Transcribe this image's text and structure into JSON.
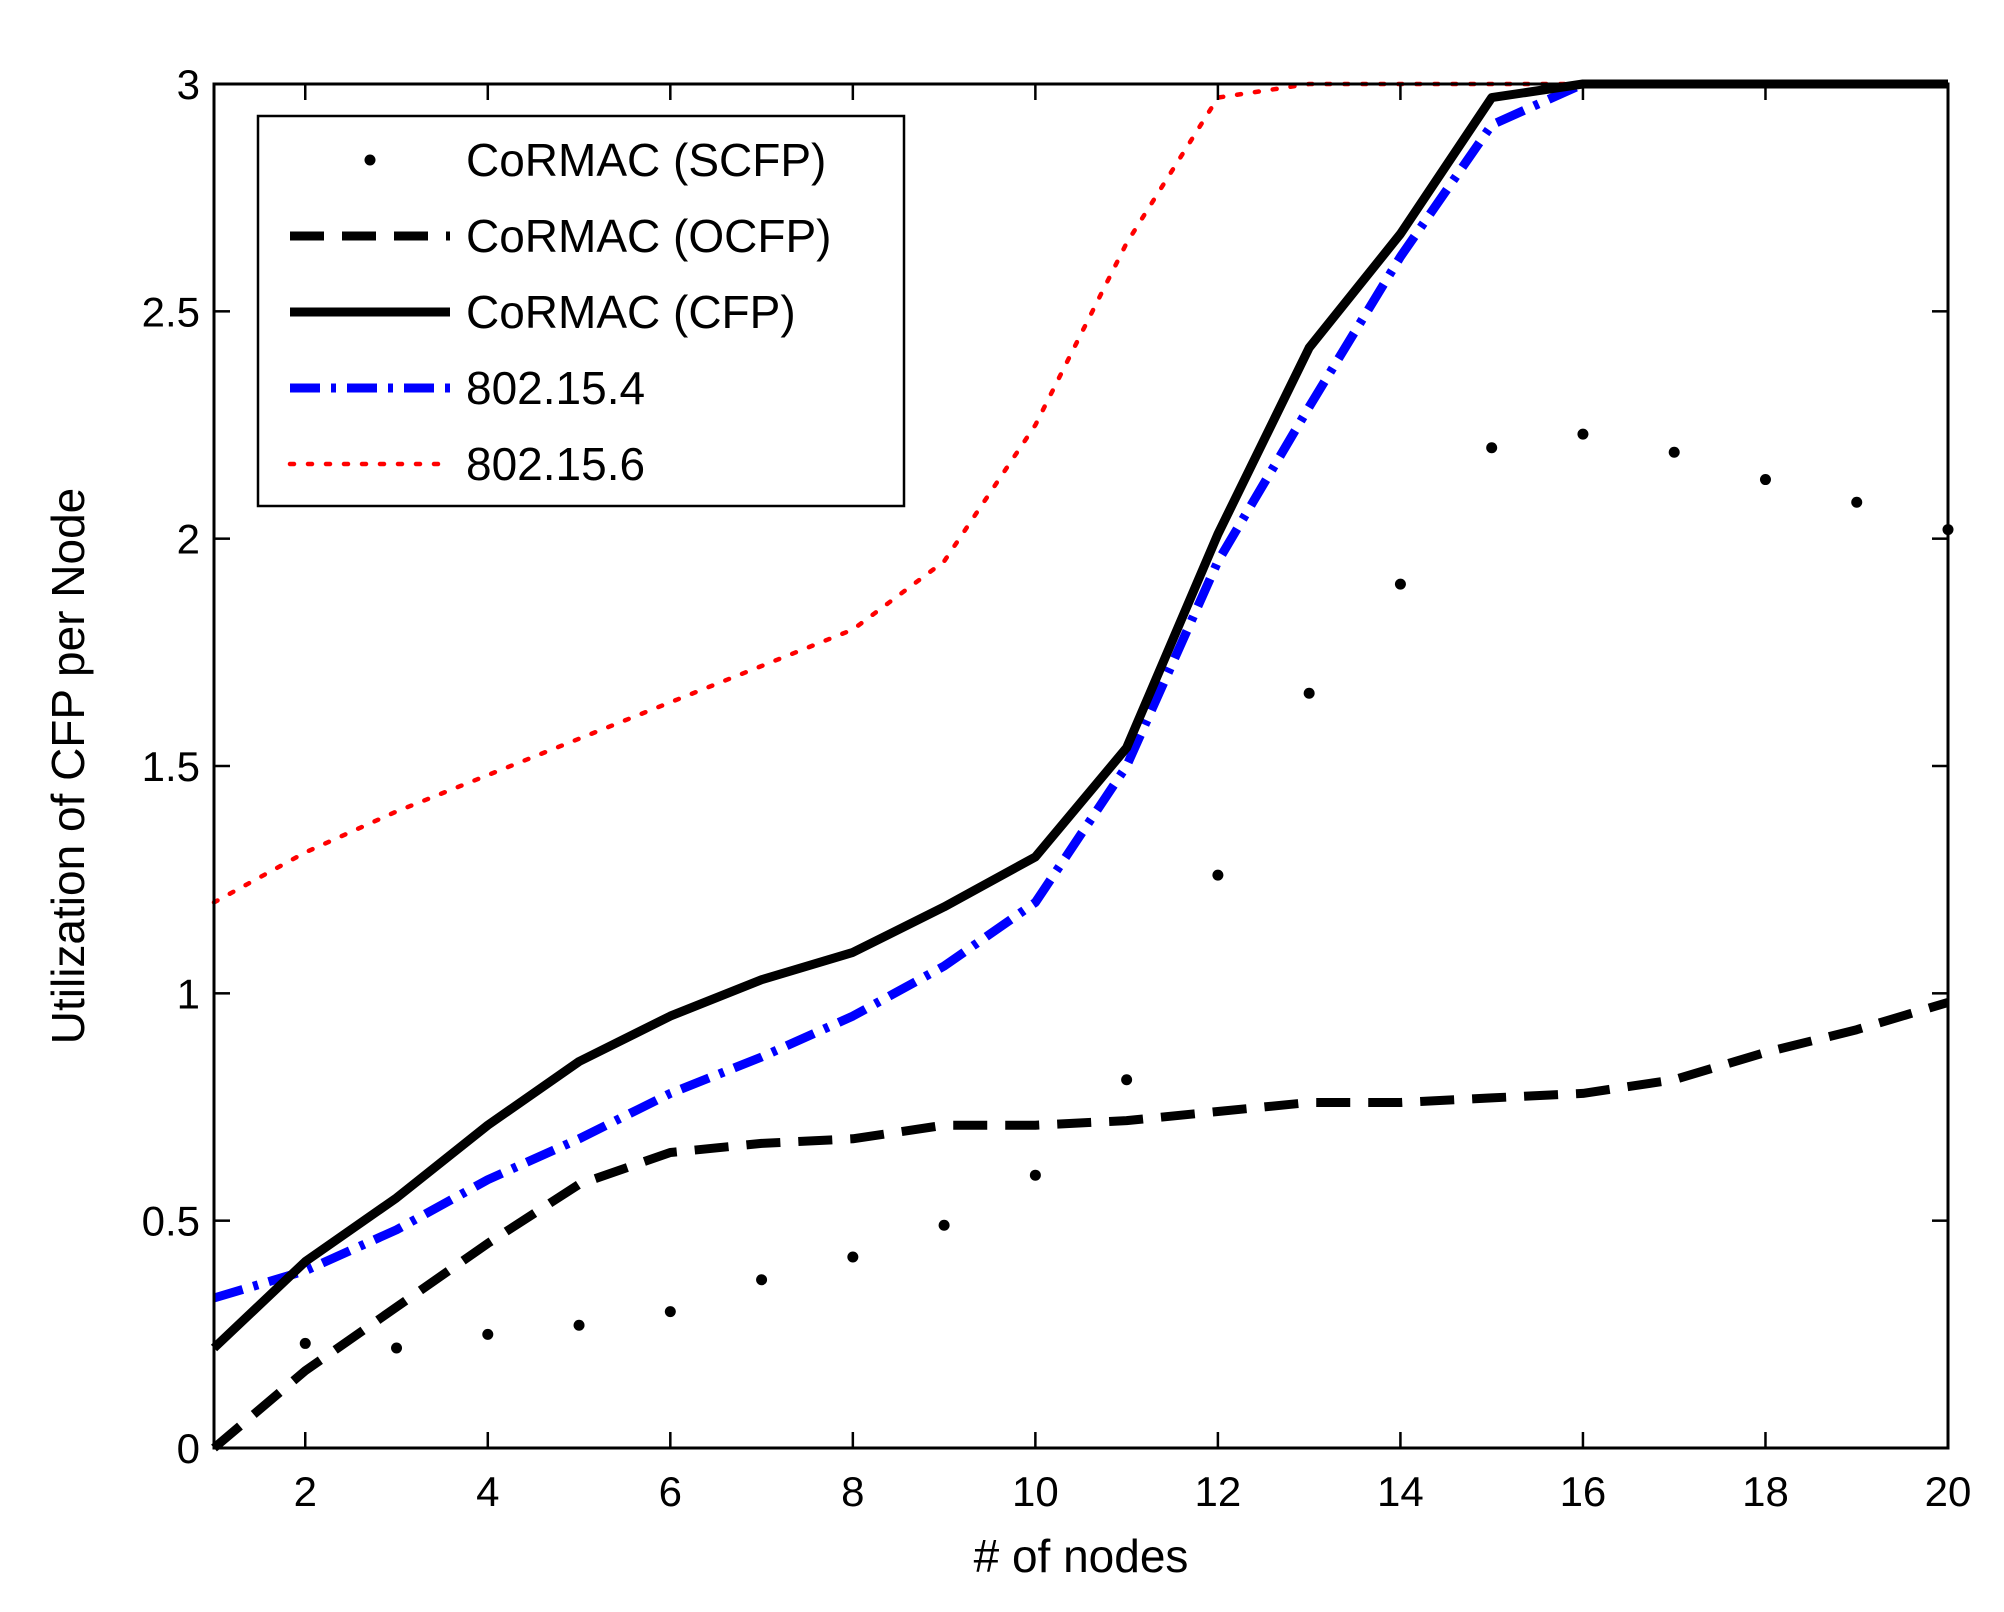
{
  "chart_data": {
    "type": "line",
    "title": "",
    "xlabel": "# of nodes",
    "ylabel": "Utilization of CFP per Node",
    "xlim": [
      1,
      20
    ],
    "ylim": [
      0,
      3
    ],
    "xticks": [
      "2",
      "4",
      "6",
      "8",
      "10",
      "12",
      "14",
      "16",
      "18",
      "20"
    ],
    "yticks": [
      "0",
      "0.5",
      "1",
      "1.5",
      "2",
      "2.5",
      "3"
    ],
    "grid": false,
    "legend_position": "top-left",
    "x": [
      1,
      2,
      3,
      4,
      5,
      6,
      7,
      8,
      9,
      10,
      11,
      12,
      13,
      14,
      15,
      16,
      17,
      18,
      19,
      20
    ],
    "series": [
      {
        "name": "CoRMAC (SCFP)",
        "style": "points",
        "color": "#000000",
        "values": [
          null,
          0.23,
          0.22,
          0.25,
          0.27,
          0.3,
          0.37,
          0.42,
          0.49,
          0.6,
          0.81,
          1.26,
          1.66,
          1.9,
          2.2,
          2.23,
          2.19,
          2.13,
          2.08,
          2.02
        ]
      },
      {
        "name": "CoRMAC (OCFP)",
        "style": "dashed",
        "color": "#000000",
        "values": [
          0.0,
          0.17,
          0.31,
          0.45,
          0.58,
          0.65,
          0.67,
          0.68,
          0.71,
          0.71,
          0.72,
          0.74,
          0.76,
          0.76,
          0.77,
          0.78,
          0.81,
          0.87,
          0.92,
          0.98
        ]
      },
      {
        "name": "CoRMAC (CFP)",
        "style": "solid",
        "color": "#000000",
        "values": [
          0.22,
          0.41,
          0.55,
          0.71,
          0.85,
          0.95,
          1.03,
          1.09,
          1.19,
          1.3,
          1.54,
          2.01,
          2.42,
          2.67,
          2.97,
          3.0,
          3.0,
          3.0,
          3.0,
          3.0
        ]
      },
      {
        "name": "802.15.4",
        "style": "dashdot",
        "color": "#0000ff",
        "values": [
          0.33,
          0.39,
          0.48,
          0.59,
          0.68,
          0.78,
          0.86,
          0.95,
          1.06,
          1.2,
          1.5,
          1.95,
          2.29,
          2.62,
          2.91,
          3.0,
          3.0,
          3.0,
          3.0,
          3.0
        ]
      },
      {
        "name": "802.15.6",
        "style": "dotted",
        "color": "#ff0000",
        "values": [
          1.2,
          1.31,
          1.4,
          1.48,
          1.56,
          1.64,
          1.72,
          1.8,
          1.95,
          2.25,
          2.65,
          2.97,
          3.0,
          3.0,
          3.0,
          3.0,
          3.0,
          3.0,
          3.0,
          3.0
        ]
      }
    ]
  }
}
